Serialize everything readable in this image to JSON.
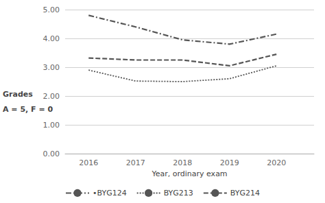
{
  "chart_data": {
    "type": "line",
    "xlabel": "Year, ordinary exam",
    "ylabel": "Grades\nA = 5, F = 0",
    "x": [
      2016,
      2017,
      2018,
      2019,
      2020
    ],
    "series": [
      {
        "name": "•BYG124",
        "color": "#555555",
        "line_style": "dashdot",
        "values": [
          4.8,
          4.4,
          3.95,
          3.8,
          4.15
        ]
      },
      {
        "name": "BYG213",
        "color": "#555555",
        "line_style": "dotted",
        "values": [
          2.9,
          2.52,
          2.5,
          2.6,
          3.05
        ]
      },
      {
        "name": "BYG214",
        "color": "#555555",
        "line_style": "dashed",
        "values": [
          3.32,
          3.25,
          3.25,
          3.05,
          3.45
        ]
      }
    ],
    "xlim": [
      2015.5,
      2020.8
    ],
    "xticks": [
      2016,
      2017,
      2018,
      2019,
      2020
    ],
    "ylim": [
      0.0,
      5.0
    ],
    "yticks": [
      {
        "value": 0.0,
        "label": "0.00"
      },
      {
        "value": 1.0,
        "label": "1.00"
      },
      {
        "value": 2.0,
        "label": "2.00"
      },
      {
        "value": 3.0,
        "label": "3.00"
      },
      {
        "value": 4.0,
        "label": "4.00"
      },
      {
        "value": 5.0,
        "label": "5.00"
      }
    ],
    "grid": true,
    "legend": "bottom"
  }
}
